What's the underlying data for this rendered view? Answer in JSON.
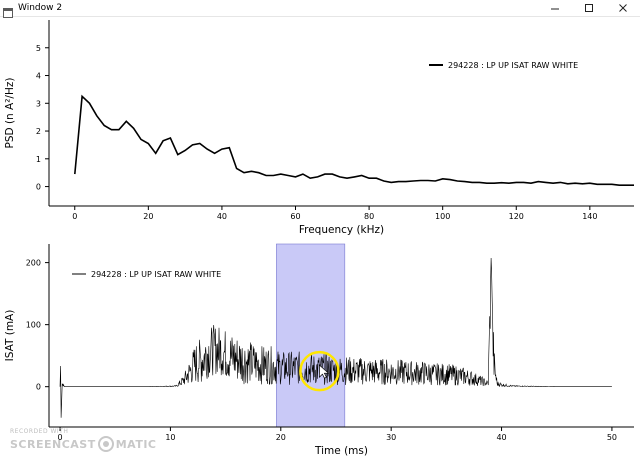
{
  "window": {
    "title": "Window 2",
    "controls": [
      "minimize",
      "maximize",
      "close"
    ]
  },
  "chart_data": [
    {
      "type": "line",
      "xlabel": "Frequency (kHz)",
      "ylabel": "PSD (n A²/Hz)",
      "xlim": [
        -7,
        152
      ],
      "ylim": [
        -0.7,
        6
      ],
      "xticks": [
        0,
        20,
        40,
        60,
        80,
        100,
        120,
        140
      ],
      "yticks": [
        0,
        1,
        2,
        3,
        4,
        5
      ],
      "legend_location": "top-right",
      "series": [
        {
          "name": "294228 : LP UP ISAT RAW WHITE",
          "color": "#000000",
          "x": [
            0,
            2,
            4,
            6,
            8,
            10,
            12,
            14,
            16,
            18,
            20,
            22,
            24,
            26,
            28,
            30,
            32,
            34,
            36,
            38,
            40,
            42,
            44,
            46,
            48,
            50,
            52,
            54,
            56,
            58,
            60,
            62,
            64,
            66,
            68,
            70,
            72,
            74,
            76,
            78,
            80,
            82,
            84,
            86,
            88,
            90,
            92,
            94,
            96,
            98,
            100,
            102,
            104,
            106,
            108,
            110,
            112,
            114,
            116,
            118,
            120,
            122,
            124,
            126,
            128,
            130,
            132,
            134,
            136,
            138,
            140,
            142,
            144,
            146,
            148,
            150,
            152
          ],
          "y": [
            0.45,
            3.25,
            3.0,
            2.55,
            2.2,
            2.05,
            2.05,
            2.35,
            2.1,
            1.7,
            1.55,
            1.2,
            1.65,
            1.75,
            1.15,
            1.3,
            1.5,
            1.55,
            1.35,
            1.2,
            1.35,
            1.4,
            0.65,
            0.5,
            0.55,
            0.5,
            0.4,
            0.4,
            0.45,
            0.4,
            0.35,
            0.45,
            0.3,
            0.35,
            0.45,
            0.45,
            0.35,
            0.3,
            0.35,
            0.4,
            0.3,
            0.3,
            0.2,
            0.15,
            0.18,
            0.18,
            0.2,
            0.22,
            0.22,
            0.2,
            0.28,
            0.25,
            0.2,
            0.18,
            0.15,
            0.15,
            0.12,
            0.12,
            0.14,
            0.12,
            0.15,
            0.15,
            0.12,
            0.18,
            0.15,
            0.12,
            0.15,
            0.1,
            0.12,
            0.1,
            0.12,
            0.08,
            0.08,
            0.08,
            0.05,
            0.05,
            0.05
          ]
        }
      ]
    },
    {
      "type": "line",
      "xlabel": "Time (ms)",
      "ylabel": "ISAT (mA)",
      "xlim": [
        -1,
        52
      ],
      "ylim": [
        -65,
        230
      ],
      "xticks": [
        0,
        10,
        20,
        30,
        40,
        50
      ],
      "yticks": [
        0,
        100,
        200
      ],
      "legend_location": "top-left",
      "selected_region": [
        19.6,
        25.8
      ],
      "selection_color": "#c9c9f7",
      "series": [
        {
          "name": "294228 : LP UP ISAT RAW WHITE",
          "color": "#000000",
          "x": [
            0,
            0.05,
            0.1,
            0.2,
            0.4,
            1,
            4,
            8,
            10.5,
            11.2,
            11.8,
            12.3,
            12.8,
            13.4,
            14,
            14.6,
            15.2,
            16,
            17,
            18,
            19,
            20,
            21,
            22,
            23,
            24,
            25,
            26,
            27,
            28,
            29,
            30,
            31,
            32,
            33,
            34,
            35,
            36,
            37,
            38,
            38.8,
            39.1,
            39.2,
            39.35,
            39.6,
            40,
            40.5,
            41,
            45,
            48,
            50
          ],
          "y": [
            0,
            30,
            -50,
            5,
            0,
            0,
            0,
            0,
            1,
            10,
            25,
            38,
            42,
            55,
            60,
            58,
            50,
            45,
            40,
            35,
            35,
            30,
            30,
            30,
            28,
            28,
            26,
            26,
            25,
            25,
            24,
            24,
            23,
            22,
            22,
            20,
            20,
            18,
            15,
            10,
            5,
            215,
            80,
            30,
            5,
            3,
            2,
            1,
            0,
            0,
            0
          ]
        }
      ]
    }
  ],
  "watermark": {
    "recorded": "RECORDED WITH",
    "brand_left": "SCREENCAST",
    "brand_right": "MATIC"
  }
}
